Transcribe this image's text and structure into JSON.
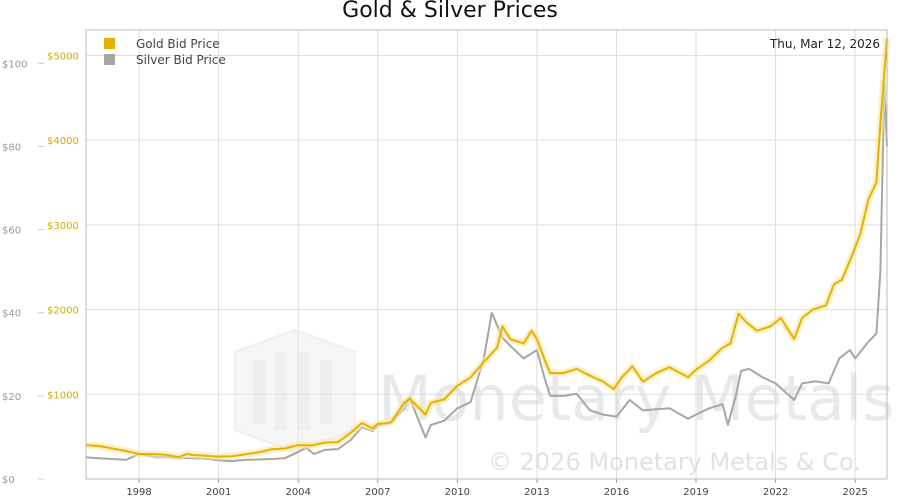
{
  "chart_data": {
    "type": "line",
    "title": "Gold & Silver Prices",
    "date_label": "Thu, Mar 12, 2026",
    "x_range": [
      1996.0,
      2026.2
    ],
    "x_ticks": [
      "1998",
      "2001",
      "2004",
      "2007",
      "2010",
      "2013",
      "2016",
      "2019",
      "2022",
      "2025"
    ],
    "y_left_inner_ticks": [
      "$1000",
      "$2000",
      "$3000",
      "$4000",
      "$5000"
    ],
    "y_left_inner_range": [
      0,
      5300
    ],
    "y_left_outer_ticks": [
      "$0",
      "$20",
      "$40",
      "$60",
      "$80",
      "$100"
    ],
    "y_left_outer_range": [
      0,
      108
    ],
    "legend": [
      "Gold Bid Price",
      "Silver Bid Price"
    ],
    "colors": {
      "gold": "#e6b200",
      "silver": "#a6a6a6",
      "gold_glow": "#f3e7a6",
      "grid": "#dddddd",
      "axis": "#999999"
    },
    "watermark": {
      "name": "Monetary Metals",
      "copyright": "© 2026 Monetary Metals & Co."
    },
    "series": [
      {
        "name": "Gold Bid Price",
        "axis": "right",
        "x": [
          1996.0,
          1996.5,
          1997.0,
          1997.5,
          1998.0,
          1998.5,
          1999.0,
          1999.5,
          1999.8,
          2000.0,
          2000.5,
          2001.0,
          2001.5,
          2002.0,
          2002.5,
          2003.0,
          2003.5,
          2004.0,
          2004.5,
          2005.0,
          2005.5,
          2006.0,
          2006.4,
          2006.8,
          2007.0,
          2007.5,
          2008.0,
          2008.2,
          2008.8,
          2009.0,
          2009.5,
          2010.0,
          2010.5,
          2011.0,
          2011.5,
          2011.7,
          2012.0,
          2012.5,
          2012.8,
          2013.0,
          2013.3,
          2013.5,
          2014.0,
          2014.5,
          2015.0,
          2015.5,
          2015.9,
          2016.2,
          2016.6,
          2017.0,
          2017.5,
          2018.0,
          2018.7,
          2019.0,
          2019.5,
          2020.0,
          2020.3,
          2020.6,
          2020.9,
          2021.3,
          2021.8,
          2022.2,
          2022.7,
          2023.0,
          2023.4,
          2023.9,
          2024.2,
          2024.5,
          2024.9,
          2025.2,
          2025.5,
          2025.8,
          2025.95,
          2026.1,
          2026.2
        ],
        "values": [
          400,
          390,
          360,
          330,
          295,
          295,
          287,
          260,
          295,
          285,
          275,
          265,
          268,
          290,
          315,
          350,
          360,
          400,
          395,
          430,
          435,
          550,
          660,
          600,
          650,
          670,
          900,
          950,
          760,
          900,
          940,
          1100,
          1200,
          1380,
          1550,
          1800,
          1650,
          1600,
          1750,
          1650,
          1400,
          1250,
          1250,
          1300,
          1220,
          1150,
          1060,
          1200,
          1330,
          1150,
          1250,
          1320,
          1200,
          1290,
          1400,
          1550,
          1600,
          1950,
          1850,
          1750,
          1800,
          1900,
          1650,
          1900,
          2000,
          2050,
          2300,
          2350,
          2650,
          2900,
          3300,
          3500,
          4200,
          4800,
          5200
        ]
      },
      {
        "name": "Silver Bid Price",
        "axis": "left",
        "x": [
          1996.0,
          1996.5,
          1997.0,
          1997.5,
          1998.0,
          1998.2,
          1998.7,
          1999.0,
          1999.5,
          2000.0,
          2000.5,
          2001.0,
          2001.5,
          2002.0,
          2002.5,
          2003.0,
          2003.5,
          2004.0,
          2004.3,
          2004.6,
          2005.0,
          2005.5,
          2006.0,
          2006.4,
          2006.8,
          2007.0,
          2007.5,
          2008.0,
          2008.2,
          2008.8,
          2009.0,
          2009.5,
          2010.0,
          2010.5,
          2011.0,
          2011.3,
          2011.5,
          2011.7,
          2012.0,
          2012.5,
          2013.0,
          2013.3,
          2013.5,
          2014.0,
          2014.5,
          2015.0,
          2015.5,
          2016.0,
          2016.5,
          2017.0,
          2017.5,
          2018.0,
          2018.7,
          2019.0,
          2019.5,
          2020.0,
          2020.2,
          2020.5,
          2020.7,
          2021.0,
          2021.5,
          2022.0,
          2022.7,
          2023.0,
          2023.5,
          2024.0,
          2024.4,
          2024.8,
          2025.0,
          2025.5,
          2025.8,
          2025.95,
          2026.1,
          2026.2
        ],
        "values": [
          5.2,
          5.0,
          4.8,
          4.6,
          6.0,
          5.8,
          5.2,
          5.3,
          5.1,
          5.0,
          4.9,
          4.5,
          4.3,
          4.6,
          4.7,
          4.8,
          5.0,
          6.5,
          7.5,
          6.0,
          7.0,
          7.2,
          9.5,
          12.5,
          11.5,
          13.0,
          13.5,
          17.0,
          19.5,
          10.0,
          13.0,
          14.0,
          17.0,
          18.5,
          29.0,
          40.0,
          37.0,
          34.0,
          32.0,
          29.0,
          31.0,
          24.0,
          20.0,
          20.0,
          20.5,
          16.5,
          15.5,
          15.0,
          19.0,
          16.5,
          16.8,
          17.0,
          14.5,
          15.5,
          17.0,
          18.0,
          13.0,
          20.0,
          26.0,
          26.5,
          24.5,
          23.0,
          19.0,
          23.0,
          23.5,
          23.0,
          29.0,
          31.0,
          29.0,
          33.0,
          35.0,
          50.0,
          95.0,
          80.0
        ]
      }
    ]
  }
}
